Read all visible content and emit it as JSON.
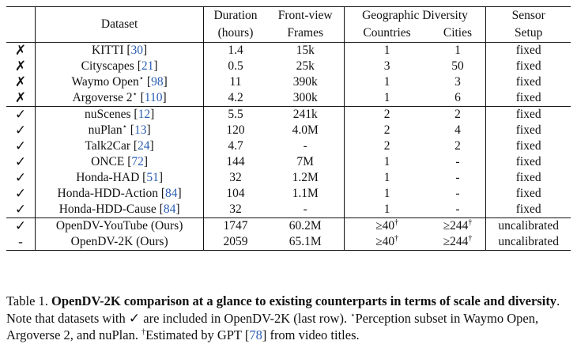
{
  "table": {
    "headers": {
      "dataset": "Dataset",
      "duration_l1": "Duration",
      "duration_l2": "(hours)",
      "frames_l1": "Front-view",
      "frames_l2": "Frames",
      "geo": "Geographic Diversity",
      "countries": "Countries",
      "cities": "Cities",
      "sensor_l1": "Sensor",
      "sensor_l2": "Setup"
    },
    "group1": [
      {
        "mark": "✗",
        "name": "KITTI [",
        "ref": "30",
        "star": "",
        "duration": "1.4",
        "frames": "15k",
        "countries": "1",
        "cities": "1",
        "sensor": "fixed"
      },
      {
        "mark": "✗",
        "name": "Cityscapes [",
        "ref": "21",
        "star": "",
        "duration": "0.5",
        "frames": "25k",
        "countries": "3",
        "cities": "50",
        "sensor": "fixed"
      },
      {
        "mark": "✗",
        "name": "Waymo Open",
        "ref": "98",
        "star": "⋆",
        "duration": "11",
        "frames": "390k",
        "countries": "1",
        "cities": "3",
        "sensor": "fixed"
      },
      {
        "mark": "✗",
        "name": "Argoverse 2",
        "ref": "110",
        "star": "⋆",
        "duration": "4.2",
        "frames": "300k",
        "countries": "1",
        "cities": "6",
        "sensor": "fixed"
      }
    ],
    "group2": [
      {
        "mark": "✓",
        "name": "nuScenes [",
        "ref": "12",
        "star": "",
        "duration": "5.5",
        "frames": "241k",
        "countries": "2",
        "cities": "2",
        "sensor": "fixed"
      },
      {
        "mark": "✓",
        "name": "nuPlan",
        "ref": "13",
        "star": "⋆",
        "duration": "120",
        "frames": "4.0M",
        "countries": "2",
        "cities": "4",
        "sensor": "fixed"
      },
      {
        "mark": "✓",
        "name": "Talk2Car [",
        "ref": "24",
        "star": "",
        "duration": "4.7",
        "frames": "-",
        "countries": "2",
        "cities": "2",
        "sensor": "fixed"
      },
      {
        "mark": "✓",
        "name": "ONCE [",
        "ref": "72",
        "star": "",
        "duration": "144",
        "frames": "7M",
        "countries": "1",
        "cities": "-",
        "sensor": "fixed"
      },
      {
        "mark": "✓",
        "name": "Honda-HAD [",
        "ref": "51",
        "star": "",
        "duration": "32",
        "frames": "1.2M",
        "countries": "1",
        "cities": "-",
        "sensor": "fixed"
      },
      {
        "mark": "✓",
        "name": "Honda-HDD-Action [",
        "ref": "84",
        "star": "",
        "duration": "104",
        "frames": "1.1M",
        "countries": "1",
        "cities": "-",
        "sensor": "fixed"
      },
      {
        "mark": "✓",
        "name": "Honda-HDD-Cause [",
        "ref": "84",
        "star": "",
        "duration": "32",
        "frames": "-",
        "countries": "1",
        "cities": "-",
        "sensor": "fixed"
      }
    ],
    "group3": [
      {
        "mark": "✓",
        "name": "OpenDV-YouTube (Ours)",
        "duration": "1747",
        "frames": "60.2M",
        "countries": "≥40",
        "cities": "≥244",
        "dagger": "†",
        "sensor": "uncalibrated"
      },
      {
        "mark": "-",
        "name": "OpenDV-2K (Ours)",
        "duration": "2059",
        "frames": "65.1M",
        "countries": "≥40",
        "cities": "≥244",
        "dagger": "†",
        "sensor": "uncalibrated"
      }
    ]
  },
  "caption": {
    "label": "Table 1.",
    "bold_text": "OpenDV-2K comparison at a glance to existing counterparts in terms of scale and diversity",
    "text_a": ". Note that datasets with ",
    "check": "✓",
    "text_b": " are included in OpenDV-2K (last row). ",
    "star": "⋆",
    "text_c": "Perception subset in Waymo Open, Argoverse 2, and nuPlan. ",
    "dagger": "†",
    "text_d": "Estimated by GPT [",
    "ref": "78",
    "text_e": "] from video titles."
  }
}
